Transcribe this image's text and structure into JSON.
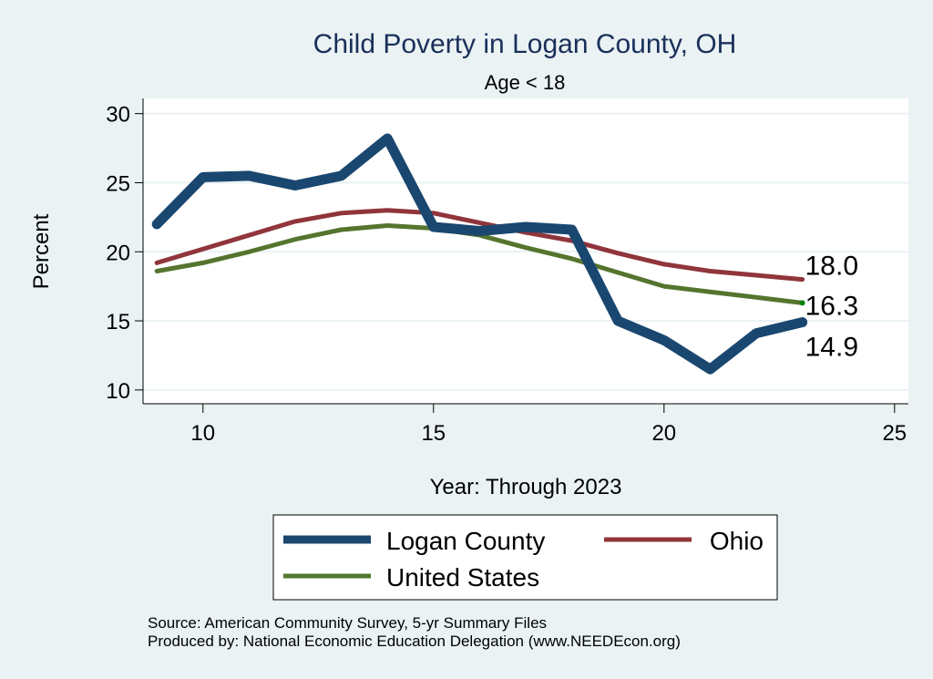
{
  "chart_data": {
    "type": "line",
    "title": "Child Poverty in Logan County, OH",
    "subtitle": "Age < 18",
    "xlabel": "Year: Through 2023",
    "ylabel": "Percent",
    "xlim": [
      8.7,
      25.3
    ],
    "ylim": [
      9,
      31.1
    ],
    "xticks": [
      10,
      15,
      20,
      25
    ],
    "yticks": [
      10,
      15,
      20,
      25,
      30
    ],
    "grid": true,
    "x": [
      9,
      10,
      11,
      12,
      13,
      14,
      15,
      16,
      17,
      18,
      19,
      20,
      21,
      22,
      23
    ],
    "series": [
      {
        "name": "Logan County",
        "color": "#1a476f",
        "values": [
          22.0,
          25.4,
          25.5,
          24.8,
          25.5,
          28.2,
          21.8,
          21.5,
          21.8,
          21.6,
          15.0,
          13.6,
          11.5,
          14.1,
          14.9
        ],
        "end_label": "14.9"
      },
      {
        "name": "Ohio",
        "color": "#90353b",
        "values": [
          19.2,
          20.2,
          21.2,
          22.2,
          22.8,
          23.0,
          22.8,
          22.1,
          21.4,
          20.8,
          19.9,
          19.1,
          18.6,
          18.3,
          18.0
        ],
        "end_label": "18.0"
      },
      {
        "name": "United States",
        "color": "#55752f",
        "values": [
          18.6,
          19.2,
          20.0,
          20.9,
          21.6,
          21.9,
          21.7,
          21.2,
          20.3,
          19.5,
          18.5,
          17.5,
          17.1,
          16.7,
          16.3
        ],
        "end_label": "16.3"
      }
    ],
    "legend": {
      "position": "bottom",
      "entries": [
        "Logan County",
        "Ohio",
        "United States"
      ]
    },
    "notes": [
      "Source: American Community Survey, 5-yr Summary Files",
      "Produced by: National Economic Education Delegation (www.NEEDEcon.org)"
    ]
  }
}
